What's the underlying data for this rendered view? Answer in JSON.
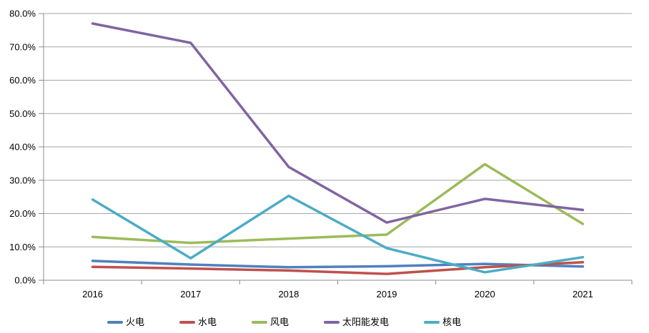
{
  "chart_data": {
    "type": "line",
    "title": "",
    "xlabel": "",
    "ylabel": "",
    "categories": [
      "2016",
      "2017",
      "2018",
      "2019",
      "2020",
      "2021"
    ],
    "series": [
      {
        "name": "火电",
        "color": "#4F81BD",
        "values": [
          5.8,
          4.7,
          3.9,
          4.2,
          4.9,
          4.1
        ]
      },
      {
        "name": "水电",
        "color": "#C0504D",
        "values": [
          4.0,
          3.5,
          2.9,
          1.9,
          3.9,
          5.4
        ]
      },
      {
        "name": "风电",
        "color": "#9BBB59",
        "values": [
          13.0,
          11.2,
          12.5,
          13.7,
          34.8,
          16.9
        ]
      },
      {
        "name": "太阳能发电",
        "color": "#8064A2",
        "values": [
          77.0,
          71.2,
          34.0,
          17.3,
          24.4,
          21.1
        ]
      },
      {
        "name": "核电",
        "color": "#4BACC6",
        "values": [
          24.2,
          6.6,
          25.3,
          9.6,
          2.4,
          6.9
        ]
      }
    ],
    "ylim": [
      0,
      80
    ],
    "ytick_step": 10,
    "y_axis_labels": [
      "0.0%",
      "10.0%",
      "20.0%",
      "30.0%",
      "40.0%",
      "50.0%",
      "60.0%",
      "70.0%",
      "80.0%"
    ],
    "grid": true,
    "legend_position": "bottom",
    "colors": {
      "background": "#FFFFFF",
      "gridline": "#A6A6A6",
      "axis": "#8C8C8C",
      "tick": "#8C8C8C",
      "label_text": "#000000"
    }
  }
}
